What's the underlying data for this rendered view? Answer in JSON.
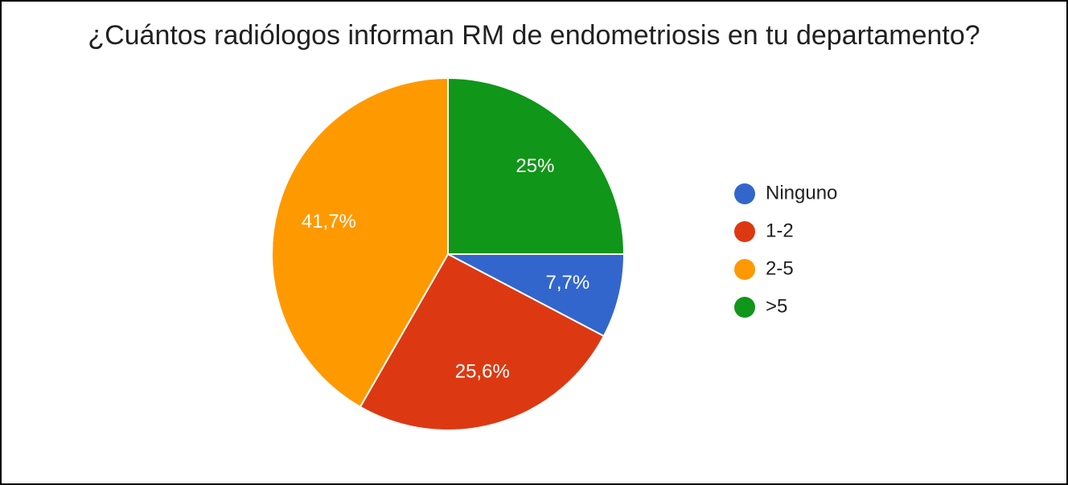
{
  "chart_data": {
    "type": "pie",
    "title": "¿Cuántos radiólogos informan RM de endometriosis en tu departamento?",
    "categories": [
      "Ninguno",
      "1-2",
      "2-5",
      ">5"
    ],
    "values": [
      7.7,
      25.6,
      41.7,
      25
    ],
    "value_labels": [
      "7,7%",
      "25,6%",
      "41,7%",
      "25%"
    ],
    "colors": [
      "#3366cc",
      "#dc3912",
      "#ff9900",
      "#109618"
    ],
    "legend": "right"
  }
}
